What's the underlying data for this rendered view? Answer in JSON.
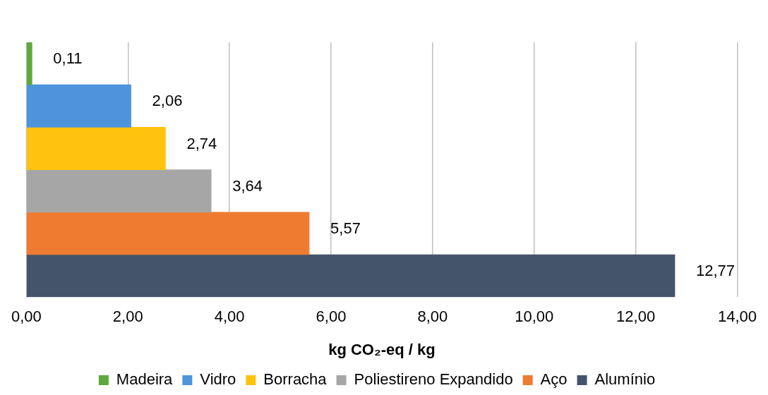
{
  "chart_data": {
    "type": "bar",
    "orientation": "horizontal",
    "stacked": true,
    "xlabel": "kg CO₂-eq / kg",
    "categories": [
      null,
      null,
      null,
      null,
      null,
      null
    ],
    "series": [
      {
        "name": "Madeira",
        "color": "#5ea83c",
        "values": [
          0.11,
          null,
          null,
          null,
          null,
          null
        ],
        "value_labels": [
          "0,11",
          null,
          null,
          null,
          null,
          null
        ]
      },
      {
        "name": "Vidro",
        "color": "#4d94dc",
        "values": [
          null,
          2.06,
          null,
          null,
          null,
          null
        ],
        "value_labels": [
          null,
          "2,06",
          null,
          null,
          null,
          null
        ]
      },
      {
        "name": "Borracha",
        "color": "#ffc20e",
        "values": [
          null,
          null,
          2.74,
          null,
          null,
          null
        ],
        "value_labels": [
          null,
          null,
          "2,74",
          null,
          null,
          null
        ]
      },
      {
        "name": "Poliestireno Expandido",
        "color": "#a6a6a6",
        "values": [
          null,
          null,
          null,
          3.64,
          null,
          null
        ],
        "value_labels": [
          null,
          null,
          null,
          "3,64",
          null,
          null
        ]
      },
      {
        "name": "Aço",
        "color": "#ee7b30",
        "values": [
          null,
          null,
          null,
          null,
          5.57,
          null
        ],
        "value_labels": [
          null,
          null,
          null,
          null,
          "5,57",
          null
        ]
      },
      {
        "name": "Alumínio",
        "color": "#44546a",
        "values": [
          null,
          null,
          null,
          null,
          null,
          12.77
        ],
        "value_labels": [
          null,
          null,
          null,
          null,
          null,
          "12,77"
        ]
      }
    ],
    "xlim": [
      0,
      14
    ],
    "xticks": [
      {
        "value": 0,
        "label": "0,00"
      },
      {
        "value": 2,
        "label": "2,00"
      },
      {
        "value": 4,
        "label": "4,00"
      },
      {
        "value": 6,
        "label": "6,00"
      },
      {
        "value": 8,
        "label": "8,00"
      },
      {
        "value": 10,
        "label": "10,00"
      },
      {
        "value": 12,
        "label": "12,00"
      },
      {
        "value": 14,
        "label": "14,00"
      }
    ],
    "grid": "x",
    "legend": "bottom"
  }
}
